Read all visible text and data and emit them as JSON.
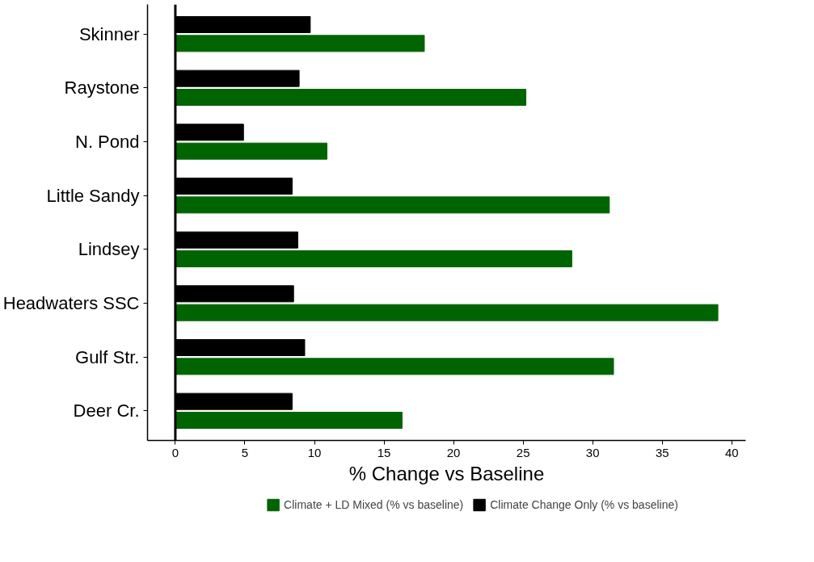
{
  "chart_data": {
    "type": "bar",
    "orientation": "horizontal",
    "xlabel": "% Change vs Baseline",
    "categories": [
      "Skinner",
      "Raystone",
      "N. Pond",
      "Little Sandy",
      "Lindsey",
      "Headwaters SSC",
      "Gulf Str.",
      "Deer Cr."
    ],
    "series": [
      {
        "name": "Climate + LD Mixed (% vs baseline)",
        "color": "#006400",
        "values": [
          17.9,
          25.2,
          10.9,
          31.2,
          28.5,
          39.0,
          31.5,
          16.3
        ]
      },
      {
        "name": "Climate Change Only (% vs baseline)",
        "color": "#000000",
        "values": [
          9.7,
          8.9,
          4.9,
          8.4,
          8.8,
          8.5,
          9.3,
          8.4
        ]
      }
    ],
    "xlim": [
      -2,
      41
    ],
    "xticks": [
      0,
      5,
      10,
      15,
      20,
      25,
      30,
      35,
      40
    ],
    "ref_lines": [
      {
        "axis": "x",
        "value": 0,
        "color": "#000000"
      }
    ],
    "grid": false,
    "legend": "bottom"
  }
}
